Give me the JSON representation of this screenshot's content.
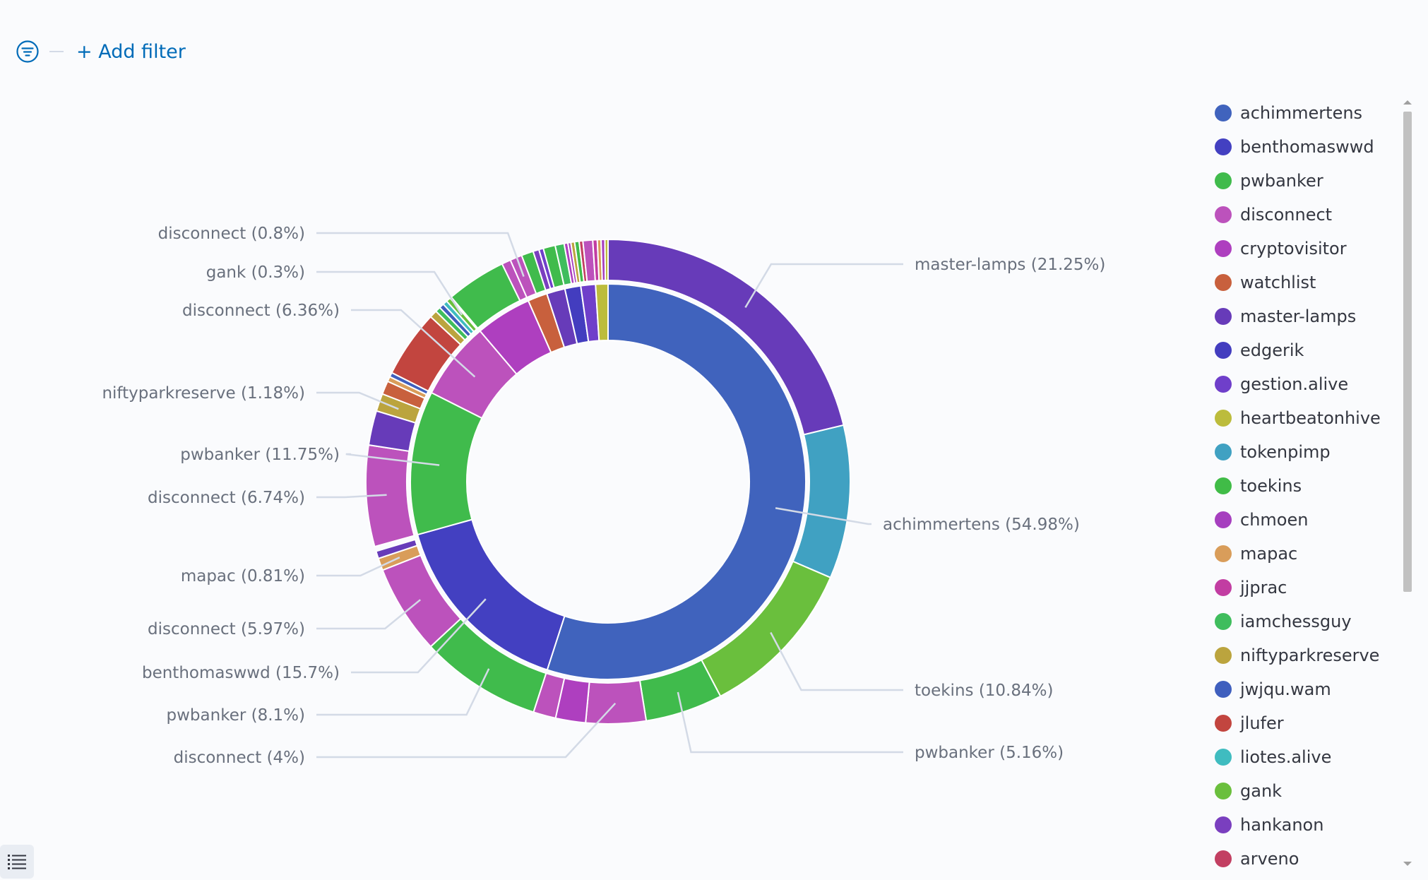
{
  "filter_bar": {
    "add_filter_label": "+ Add filter",
    "filter_icon": "filter-icon"
  },
  "colors": {
    "accent": "#006bb8",
    "chart_stroke": "#ffffff",
    "label_line": "#d3dae6"
  },
  "legend": {
    "items": [
      {
        "label": "achimmertens",
        "color": "#4063bd"
      },
      {
        "label": "benthomaswwd",
        "color": "#4340c1"
      },
      {
        "label": "pwbanker",
        "color": "#40bb4c"
      },
      {
        "label": "disconnect",
        "color": "#bc52bc"
      },
      {
        "label": "cryptovisitor",
        "color": "#ae3fbf"
      },
      {
        "label": "watchlist",
        "color": "#c8603d"
      },
      {
        "label": "master-lamps",
        "color": "#673bb9"
      },
      {
        "label": "edgerik",
        "color": "#433dbf"
      },
      {
        "label": "gestion.alive",
        "color": "#6f3fca"
      },
      {
        "label": "heartbeatonhive",
        "color": "#bcbc3c"
      },
      {
        "label": "tokenpimp",
        "color": "#40a1c2"
      },
      {
        "label": "toekins",
        "color": "#40bc47"
      },
      {
        "label": "chmoen",
        "color": "#a63fbf"
      },
      {
        "label": "mapac",
        "color": "#d99d5a"
      },
      {
        "label": "jjprac",
        "color": "#c23da2"
      },
      {
        "label": "iamchessguy",
        "color": "#3fbd5d"
      },
      {
        "label": "niftyparkreserve",
        "color": "#bba43e"
      },
      {
        "label": "jwjqu.wam",
        "color": "#3f5fbe"
      },
      {
        "label": "jlufer",
        "color": "#c2453f"
      },
      {
        "label": "liotes.alive",
        "color": "#3fbcc0"
      },
      {
        "label": "gank",
        "color": "#6abf3d"
      },
      {
        "label": "hankanon",
        "color": "#7a3fbf"
      },
      {
        "label": "arveno",
        "color": "#c23f62"
      }
    ]
  },
  "chart_data": {
    "type": "pie",
    "variant": "nested-donut",
    "title": "",
    "legend_position": "right",
    "inner_ring": [
      {
        "label": "achimmertens",
        "percent": 54.98,
        "color": "#4063bd"
      },
      {
        "label": "benthomaswwd",
        "percent": 15.7,
        "color": "#4340c1"
      },
      {
        "label": "pwbanker",
        "percent": 11.75,
        "color": "#40bb4c"
      },
      {
        "label": "disconnect",
        "percent": 6.36,
        "color": "#bc52bc"
      },
      {
        "label": "cryptovisitor",
        "percent": 4.6,
        "color": "#ae3fbf"
      },
      {
        "label": "watchlist",
        "percent": 1.6,
        "color": "#c8603d"
      },
      {
        "label": "master-lamps",
        "percent": 1.5,
        "color": "#673bb9"
      },
      {
        "label": "edgerik",
        "percent": 1.3,
        "color": "#433dbf"
      },
      {
        "label": "gestion.alive",
        "percent": 1.2,
        "color": "#6f3fca"
      },
      {
        "label": "heartbeatonhive",
        "percent": 1.01,
        "color": "#bcbc3c"
      }
    ],
    "outer_ring": [
      {
        "label": "master-lamps",
        "parent": "achimmertens",
        "percent": 21.25,
        "color": "#673bb9",
        "shown": true
      },
      {
        "label": "tokenpimp",
        "parent": "achimmertens",
        "percent": 10.23,
        "color": "#40a1c2",
        "shown": false
      },
      {
        "label": "toekins",
        "parent": "achimmertens",
        "percent": 10.84,
        "color": "#6abf3d",
        "shown": true
      },
      {
        "label": "pwbanker",
        "parent": "achimmertens",
        "percent": 5.16,
        "color": "#40bb4c",
        "shown": true
      },
      {
        "label": "disconnect",
        "parent": "achimmertens",
        "percent": 4.0,
        "color": "#bc52bc",
        "shown": true
      },
      {
        "label": "cryptovisitor",
        "parent": "achimmertens",
        "percent": 2.0,
        "color": "#ae3fbf",
        "shown": false
      },
      {
        "label": "disconnect",
        "parent": "achimmertens",
        "percent": 1.5,
        "color": "#bc52bc",
        "shown": false
      },
      {
        "label": "pwbanker",
        "parent": "benthomaswwd",
        "percent": 8.1,
        "color": "#40bb4c",
        "shown": true
      },
      {
        "label": "disconnect",
        "parent": "benthomaswwd",
        "percent": 5.97,
        "color": "#bc52bc",
        "shown": true
      },
      {
        "label": "mapac",
        "parent": "benthomaswwd",
        "percent": 0.81,
        "color": "#d99d5a",
        "shown": true
      },
      {
        "label": "master-lamps",
        "parent": "benthomaswwd",
        "percent": 0.5,
        "color": "#673bb9",
        "shown": false
      },
      {
        "label": "gap",
        "parent": "benthomaswwd",
        "percent": 0.32,
        "color": "#fafbfd",
        "shown": false
      },
      {
        "label": "disconnect",
        "parent": "pwbanker",
        "percent": 6.74,
        "color": "#bc52bc",
        "shown": true
      },
      {
        "label": "master-lamps",
        "parent": "pwbanker",
        "percent": 2.3,
        "color": "#673bb9",
        "shown": false
      },
      {
        "label": "niftyparkreserve",
        "parent": "pwbanker",
        "percent": 1.18,
        "color": "#bba43e",
        "shown": true
      },
      {
        "label": "watchlist",
        "parent": "pwbanker",
        "percent": 0.9,
        "color": "#c8603d",
        "shown": false
      },
      {
        "label": "mapac",
        "parent": "pwbanker",
        "percent": 0.33,
        "color": "#d99d5a",
        "shown": false
      },
      {
        "label": "jwjqu.wam",
        "parent": "pwbanker",
        "percent": 0.3,
        "color": "#3f5fbe",
        "shown": false
      },
      {
        "label": "jlufer",
        "parent": "disconnect",
        "percent": 4.49,
        "color": "#c2453f",
        "shown": false
      },
      {
        "label": "niftyparkreserve",
        "parent": "disconnect",
        "percent": 0.5,
        "color": "#bba43e",
        "shown": false
      },
      {
        "label": "iamchessguy",
        "parent": "disconnect",
        "percent": 0.35,
        "color": "#3fbd5d",
        "shown": false
      },
      {
        "label": "jwjqu.wam",
        "parent": "disconnect",
        "percent": 0.32,
        "color": "#3f5fbe",
        "shown": false
      },
      {
        "label": "liotes.alive",
        "parent": "disconnect",
        "percent": 0.3,
        "color": "#3fbcc0",
        "shown": false
      },
      {
        "label": "gank",
        "parent": "disconnect",
        "percent": 0.3,
        "color": "#6abf3d",
        "shown": true
      },
      {
        "label": "disconnect",
        "parent": "disconnect",
        "percent": 0.1,
        "color": "#bc52bc",
        "shown": false
      },
      {
        "label": "pwbanker",
        "parent": "cryptovisitor",
        "percent": 4.0,
        "color": "#40bb4c",
        "shown": false
      },
      {
        "label": "disconnect",
        "parent": "cryptovisitor",
        "percent": 0.6,
        "color": "#bc52bc",
        "shown": false
      },
      {
        "label": "disconnect",
        "parent": "watchlist",
        "percent": 0.8,
        "color": "#bc52bc",
        "shown": true
      },
      {
        "label": "toekins",
        "parent": "watchlist",
        "percent": 0.8,
        "color": "#40bb4c",
        "shown": false
      },
      {
        "label": "hankanon",
        "parent": "master-lamps",
        "percent": 0.4,
        "color": "#7a3fbf",
        "shown": false
      },
      {
        "label": "gestion.alive",
        "parent": "master-lamps",
        "percent": 0.3,
        "color": "#6f3fca",
        "shown": false
      },
      {
        "label": "pwbanker",
        "parent": "master-lamps",
        "percent": 0.8,
        "color": "#40bb4c",
        "shown": false
      },
      {
        "label": "iamchessguy",
        "parent": "edgerik",
        "percent": 0.6,
        "color": "#3fbd5d",
        "shown": false
      },
      {
        "label": "cryptovisitor",
        "parent": "edgerik",
        "percent": 0.25,
        "color": "#ae3fbf",
        "shown": false
      },
      {
        "label": "chmoen",
        "parent": "edgerik",
        "percent": 0.2,
        "color": "#a63fbf",
        "shown": false
      },
      {
        "label": "niftyparkreserve",
        "parent": "edgerik",
        "percent": 0.25,
        "color": "#bba43e",
        "shown": false
      },
      {
        "label": "toekins",
        "parent": "gestion.alive",
        "percent": 0.3,
        "color": "#40bb4c",
        "shown": false
      },
      {
        "label": "arveno",
        "parent": "gestion.alive",
        "percent": 0.25,
        "color": "#c23f62",
        "shown": false
      },
      {
        "label": "disconnect",
        "parent": "gestion.alive",
        "percent": 0.65,
        "color": "#bc52bc",
        "shown": false
      },
      {
        "label": "jjprac",
        "parent": "heartbeatonhive",
        "percent": 0.3,
        "color": "#c23da2",
        "shown": false
      },
      {
        "label": "mapac",
        "parent": "heartbeatonhive",
        "percent": 0.25,
        "color": "#d99d5a",
        "shown": false
      },
      {
        "label": "chmoen",
        "parent": "heartbeatonhive",
        "percent": 0.25,
        "color": "#a63fbf",
        "shown": false
      },
      {
        "label": "heartbeatonhive",
        "parent": "heartbeatonhive",
        "percent": 0.21,
        "color": "#bcbc3c",
        "shown": false
      }
    ],
    "callouts": [
      {
        "label": "master-lamps",
        "percent": 21.25,
        "text": "master-lamps (21.25%)",
        "side": "right"
      },
      {
        "label": "achimmertens",
        "percent": 54.98,
        "text": "achimmertens (54.98%)",
        "side": "right"
      },
      {
        "label": "toekins",
        "percent": 10.84,
        "text": "toekins (10.84%)",
        "side": "right"
      },
      {
        "label": "pwbanker",
        "percent": 5.16,
        "text": "pwbanker (5.16%)",
        "side": "right"
      },
      {
        "label": "disconnect",
        "percent": 4.0,
        "text": "disconnect (4%)",
        "side": "left"
      },
      {
        "label": "pwbanker",
        "percent": 8.1,
        "text": "pwbanker (8.1%)",
        "side": "left"
      },
      {
        "label": "benthomaswwd",
        "percent": 15.7,
        "text": "benthomaswwd (15.7%)",
        "side": "left"
      },
      {
        "label": "disconnect",
        "percent": 5.97,
        "text": "disconnect (5.97%)",
        "side": "left"
      },
      {
        "label": "mapac",
        "percent": 0.81,
        "text": "mapac (0.81%)",
        "side": "left"
      },
      {
        "label": "disconnect",
        "percent": 6.74,
        "text": "disconnect (6.74%)",
        "side": "left"
      },
      {
        "label": "pwbanker",
        "percent": 11.75,
        "text": "pwbanker (11.75%)",
        "side": "left"
      },
      {
        "label": "niftyparkreserve",
        "percent": 1.18,
        "text": "niftyparkreserve (1.18%)",
        "side": "left"
      },
      {
        "label": "disconnect",
        "percent": 6.36,
        "text": "disconnect (6.36%)",
        "side": "left"
      },
      {
        "label": "gank",
        "percent": 0.3,
        "text": "gank (0.3%)",
        "side": "left"
      },
      {
        "label": "disconnect",
        "percent": 0.8,
        "text": "disconnect (0.8%)",
        "side": "left"
      }
    ]
  }
}
